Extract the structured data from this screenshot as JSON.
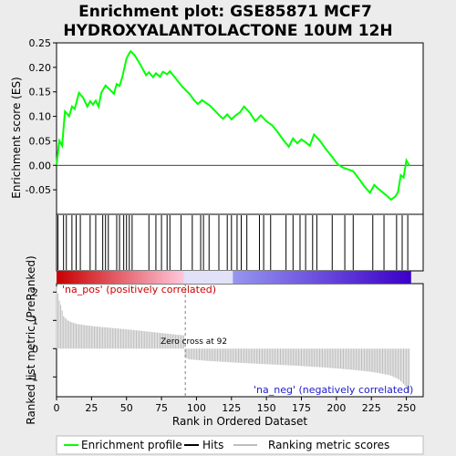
{
  "chart_data": {
    "type": "line",
    "title": "Enrichment plot: GSE85871 MCF7\nHYDROXYALANTOLACTONE 10UM 12H",
    "top_panel": {
      "ylabel": "Enrichment score (ES)",
      "ylim": [
        -0.1,
        0.25
      ],
      "yticks": [
        "0.25",
        "0.20",
        "0.15",
        "0.10",
        "0.05",
        "0.00",
        "-0.05"
      ],
      "ytick_values": [
        0.25,
        0.2,
        0.15,
        0.1,
        0.05,
        0.0,
        -0.05
      ],
      "xlim": [
        0,
        262
      ],
      "series": [
        {
          "name": "Enrichment profile",
          "color": "#00ff00",
          "points": [
            [
              0,
              0.0
            ],
            [
              2,
              0.05
            ],
            [
              4,
              0.04
            ],
            [
              6,
              0.11
            ],
            [
              9,
              0.1
            ],
            [
              11,
              0.12
            ],
            [
              13,
              0.115
            ],
            [
              16,
              0.148
            ],
            [
              19,
              0.138
            ],
            [
              22,
              0.12
            ],
            [
              24,
              0.131
            ],
            [
              26,
              0.124
            ],
            [
              28,
              0.132
            ],
            [
              30,
              0.12
            ],
            [
              32,
              0.148
            ],
            [
              35,
              0.163
            ],
            [
              38,
              0.155
            ],
            [
              41,
              0.146
            ],
            [
              43,
              0.166
            ],
            [
              45,
              0.162
            ],
            [
              47,
              0.18
            ],
            [
              50,
              0.218
            ],
            [
              52,
              0.229
            ],
            [
              53,
              0.233
            ],
            [
              56,
              0.224
            ],
            [
              60,
              0.205
            ],
            [
              64,
              0.184
            ],
            [
              66,
              0.19
            ],
            [
              69,
              0.18
            ],
            [
              71,
              0.188
            ],
            [
              74,
              0.181
            ],
            [
              76,
              0.191
            ],
            [
              79,
              0.186
            ],
            [
              81,
              0.192
            ],
            [
              85,
              0.178
            ],
            [
              90,
              0.16
            ],
            [
              95,
              0.146
            ],
            [
              98,
              0.134
            ],
            [
              101,
              0.125
            ],
            [
              104,
              0.133
            ],
            [
              107,
              0.127
            ],
            [
              110,
              0.121
            ],
            [
              113,
              0.112
            ],
            [
              116,
              0.103
            ],
            [
              119,
              0.095
            ],
            [
              122,
              0.104
            ],
            [
              125,
              0.094
            ],
            [
              128,
              0.102
            ],
            [
              131,
              0.108
            ],
            [
              134,
              0.12
            ],
            [
              138,
              0.108
            ],
            [
              142,
              0.09
            ],
            [
              146,
              0.102
            ],
            [
              150,
              0.09
            ],
            [
              154,
              0.082
            ],
            [
              158,
              0.068
            ],
            [
              162,
              0.052
            ],
            [
              166,
              0.038
            ],
            [
              169,
              0.055
            ],
            [
              172,
              0.045
            ],
            [
              175,
              0.053
            ],
            [
              178,
              0.047
            ],
            [
              181,
              0.04
            ],
            [
              184,
              0.063
            ],
            [
              188,
              0.051
            ],
            [
              192,
              0.035
            ],
            [
              197,
              0.017
            ],
            [
              201,
              0.002
            ],
            [
              205,
              -0.005
            ],
            [
              208,
              -0.008
            ],
            [
              212,
              -0.012
            ],
            [
              216,
              -0.027
            ],
            [
              220,
              -0.043
            ],
            [
              224,
              -0.056
            ],
            [
              227,
              -0.04
            ],
            [
              230,
              -0.048
            ],
            [
              233,
              -0.055
            ],
            [
              236,
              -0.062
            ],
            [
              239,
              -0.07
            ],
            [
              242,
              -0.064
            ],
            [
              244,
              -0.055
            ],
            [
              246,
              -0.02
            ],
            [
              248,
              -0.025
            ],
            [
              250,
              0.01
            ],
            [
              252,
              0.0
            ]
          ]
        }
      ]
    },
    "hits": {
      "name": "Hits",
      "color": "#000000",
      "positions": [
        1,
        5,
        7,
        11,
        14,
        17,
        24,
        28,
        33,
        35,
        37,
        43,
        45,
        48,
        50,
        52,
        54,
        66,
        71,
        75,
        79,
        81,
        89,
        97,
        103,
        105,
        109,
        116,
        122,
        125,
        129,
        132,
        136,
        145,
        148,
        153,
        164,
        169,
        174,
        178,
        183,
        186,
        197,
        206,
        212,
        226,
        234,
        243,
        247,
        251
      ]
    },
    "ranked_list": {
      "name": "Ranking metric scores",
      "color": "#bebebe",
      "ylabel": "Ranked list metric (PreRanked)",
      "xlabel": "Rank in Ordered Dataset",
      "ylim": [
        -1.7,
        2.3
      ],
      "yticks": [
        "2",
        "1",
        "0",
        "-1"
      ],
      "ytick_values": [
        2,
        1,
        0,
        -1
      ],
      "xticks": [
        "0",
        "25",
        "50",
        "75",
        "100",
        "125",
        "150",
        "175",
        "200",
        "225",
        "250"
      ],
      "xtick_values": [
        0,
        25,
        50,
        75,
        100,
        125,
        150,
        175,
        200,
        225,
        250
      ],
      "n": 253,
      "curve": [
        [
          0,
          2.2
        ],
        [
          1,
          1.95
        ],
        [
          2,
          1.7
        ],
        [
          3,
          1.55
        ],
        [
          4,
          1.35
        ],
        [
          5,
          1.15
        ],
        [
          6,
          1.1
        ],
        [
          8,
          1.0
        ],
        [
          10,
          0.95
        ],
        [
          15,
          0.87
        ],
        [
          25,
          0.8
        ],
        [
          40,
          0.73
        ],
        [
          55,
          0.66
        ],
        [
          70,
          0.58
        ],
        [
          85,
          0.5
        ],
        [
          91,
          0.47
        ],
        [
          92,
          -0.32
        ],
        [
          95,
          -0.38
        ],
        [
          110,
          -0.44
        ],
        [
          130,
          -0.5
        ],
        [
          150,
          -0.55
        ],
        [
          170,
          -0.6
        ],
        [
          190,
          -0.66
        ],
        [
          210,
          -0.74
        ],
        [
          225,
          -0.82
        ],
        [
          232,
          -0.88
        ],
        [
          238,
          -0.94
        ],
        [
          242,
          -1.02
        ],
        [
          245,
          -1.1
        ],
        [
          248,
          -1.25
        ],
        [
          250,
          -1.4
        ],
        [
          252,
          -1.55
        ]
      ],
      "zero_cross_label": "Zero cross at 92",
      "zero_cross": 92,
      "pos_label": "'na_pos' (positively correlated)",
      "neg_label": "'na_neg' (negatively correlated)"
    },
    "legend": {
      "placement": "bottom",
      "items": [
        {
          "label": "Enrichment profile",
          "color": "#00ff00"
        },
        {
          "label": "Hits",
          "color": "#000000"
        },
        {
          "label": "Ranking metric scores",
          "color": "#bebebe"
        }
      ]
    },
    "grid": false
  }
}
